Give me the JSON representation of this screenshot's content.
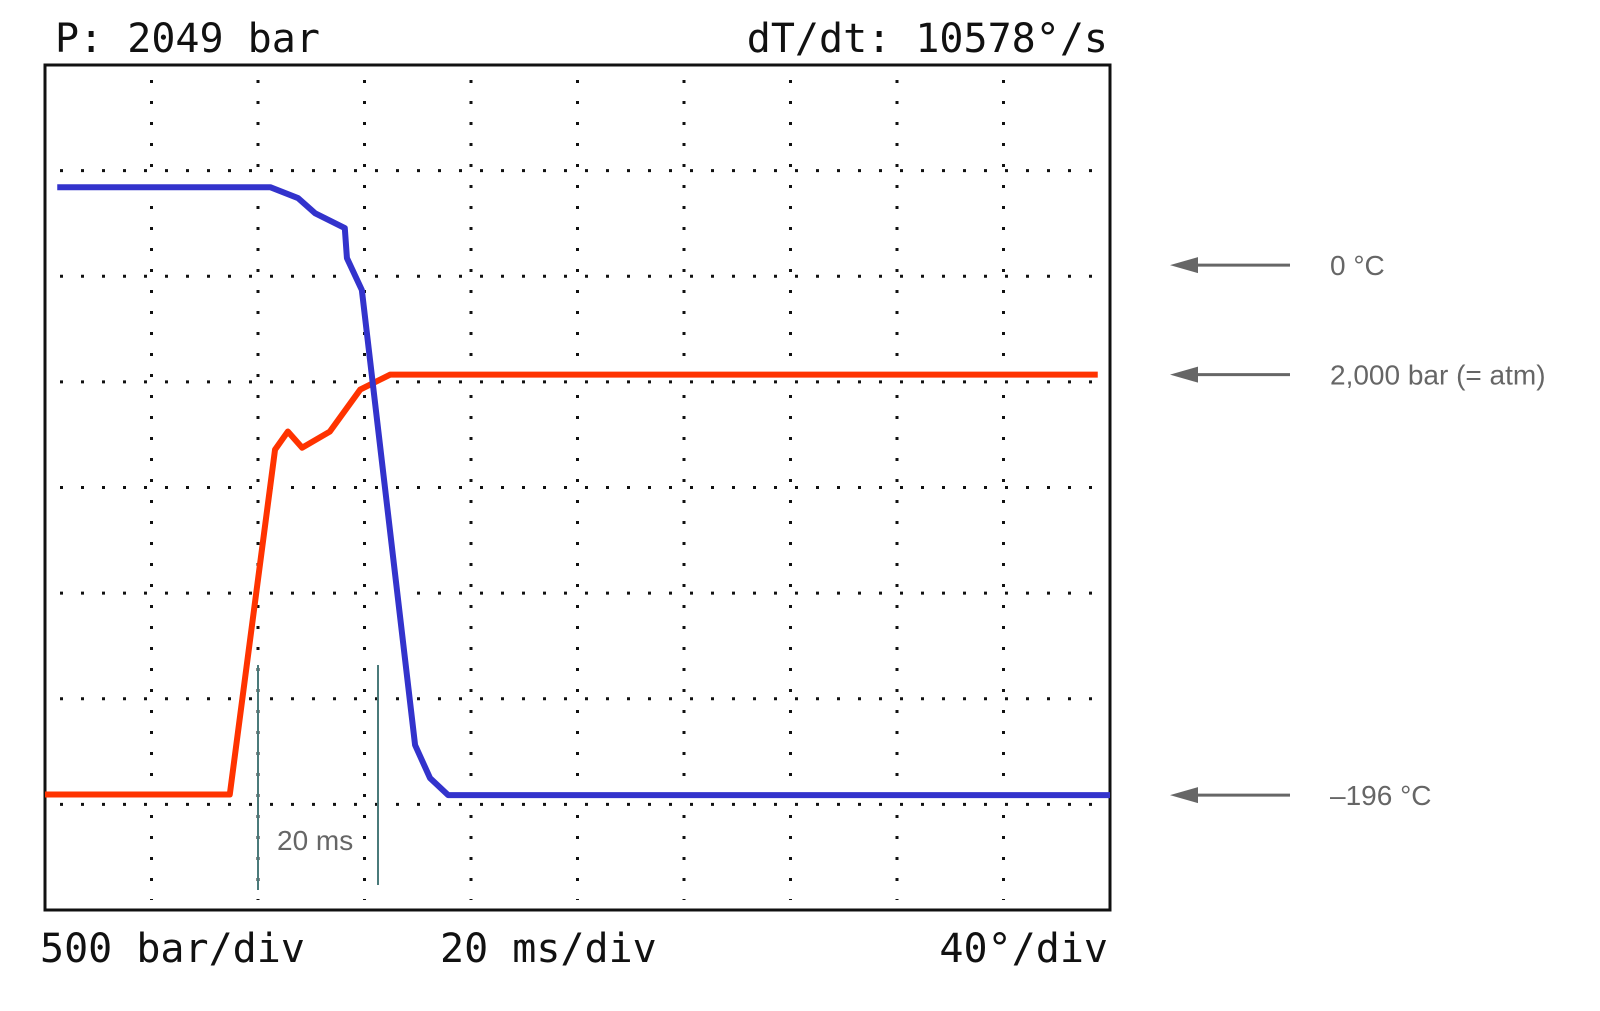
{
  "chart_data": {
    "type": "line",
    "header": [
      "P: 2049 bar",
      "dT/dt: 10578°/s"
    ],
    "footer": [
      "500 bar/div",
      "20 ms/div",
      "40°/div"
    ],
    "annotation": "20 ms",
    "xlim": [
      0,
      200
    ],
    "ylim": [
      -550,
      3475
    ],
    "y2lim": [
      -238.5,
      74
    ],
    "yticks": [
      {
        "value": 2000,
        "label": "2,000 bar (= atm)"
      }
    ],
    "y2ticks": [
      {
        "value": 0,
        "label": "0 °C"
      },
      {
        "value": -196,
        "label": "–196 °C"
      }
    ],
    "series": [
      {
        "color": "#ff3300",
        "x": [
          0,
          34.7,
          43.2,
          45.6,
          48.3,
          53.5,
          59.2,
          64.8,
          197.7
        ],
        "values": [
          0,
          0,
          1643,
          1729,
          1652,
          1729,
          1929,
          2000,
          2000
        ]
      },
      {
        "color": "#3333cc",
        "axis": "y2",
        "x": [
          2.3,
          42.3,
          47.5,
          50.7,
          56.3,
          56.7,
          59.5,
          69.5,
          72.3,
          75.7,
          200
        ],
        "values": [
          28.8,
          28.8,
          24.8,
          19.2,
          13.7,
          2.6,
          -9.2,
          -177.5,
          -189.7,
          -196,
          -196
        ]
      }
    ]
  }
}
